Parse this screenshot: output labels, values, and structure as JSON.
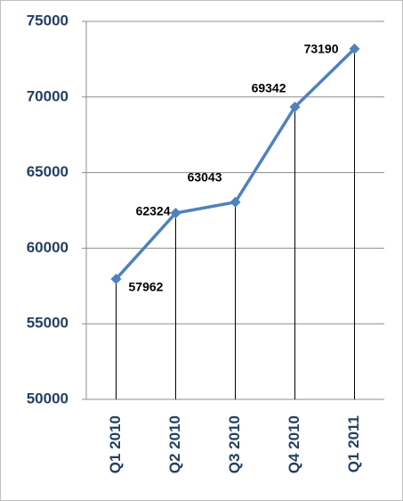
{
  "chart_data": {
    "type": "line",
    "categories": [
      "Q1 2010",
      "Q2 2010",
      "Q3 2010",
      "Q4 2010",
      "Q1 2011"
    ],
    "values": [
      57962,
      62324,
      63043,
      69342,
      73190
    ],
    "color": "#4f81bd",
    "ylim": [
      50000,
      75000
    ],
    "yticks": [
      50000,
      55000,
      60000,
      65000,
      70000,
      75000
    ],
    "grid": true,
    "drop_lines": true
  }
}
